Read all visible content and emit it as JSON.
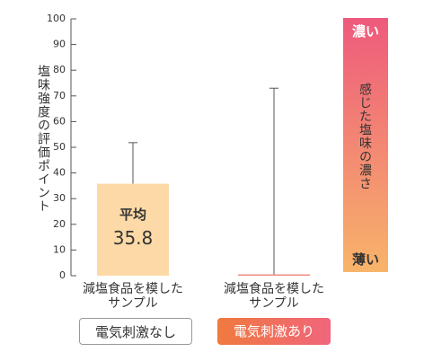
{
  "chart_data": {
    "type": "bar",
    "y_label": "塩味強度の評価ポイント",
    "categories": [
      "減塩食品を模した\nサンプル",
      "減塩食品を模した\nサンプル"
    ],
    "groups": [
      "電気刺激なし",
      "電気刺激あり"
    ],
    "values": [
      35.8,
      0.5
    ],
    "errors": [
      16,
      72.5
    ],
    "colors": [
      "#fcd9a6",
      "#f2857a"
    ],
    "error_color": "#555555",
    "bar_annotation": "平均",
    "ylim": [
      0,
      100
    ],
    "yticks": [
      0,
      10,
      20,
      30,
      40,
      50,
      60,
      70,
      80,
      90,
      100
    ],
    "grid": false,
    "gradient_legend": {
      "top": "濃い",
      "label": "感じた塩味の濃さ",
      "bottom": "薄い"
    }
  }
}
